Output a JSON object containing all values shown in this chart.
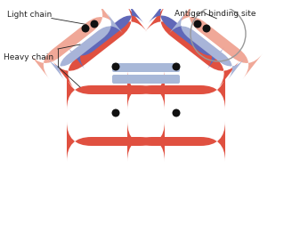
{
  "bg_color": "#ffffff",
  "red_color": "#e05040",
  "red_light_color": "#f0a898",
  "blue_dark_color": "#6068b8",
  "blue_light_color": "#a8b4d8",
  "hinge_color": "#a8b8d8",
  "node_color": "#111111",
  "label_light_chain": "Light chain",
  "label_heavy_chain": "Heavy chain",
  "label_antigen": "Antigen binding site",
  "label_fontsize": 6.5,
  "text_color": "#222222"
}
